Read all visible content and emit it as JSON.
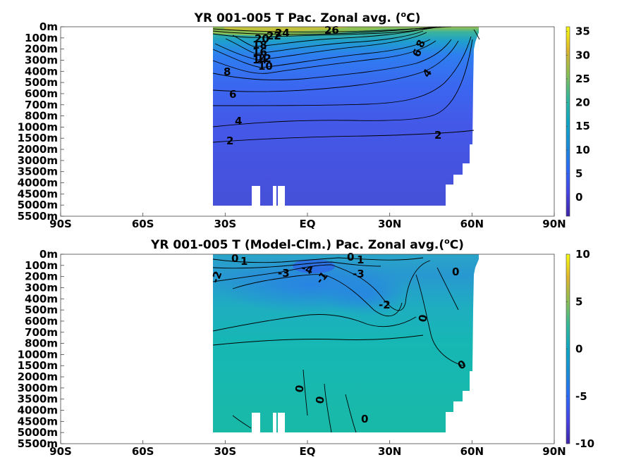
{
  "chart_data": [
    {
      "type": "heatmap",
      "title": "YR 001-005 T Pac. Zonal avg. (",
      "title_superscript": "o",
      "title_suffix": "C)",
      "x_tick_labels": [
        "90S",
        "60S",
        "30S",
        "EQ",
        "30N",
        "60N",
        "90N"
      ],
      "x_tick_values": [
        -90,
        -60,
        -30,
        0,
        30,
        60,
        90
      ],
      "y_tick_labels": [
        "0m",
        "100m",
        "200m",
        "300m",
        "400m",
        "500m",
        "600m",
        "700m",
        "800m",
        "1000m",
        "1500m",
        "2000m",
        "3000m",
        "3500m",
        "4000m",
        "4500m",
        "5000m",
        "5500m"
      ],
      "colorbar_ticks": [
        "35",
        "30",
        "25",
        "20",
        "15",
        "10",
        "5",
        "0"
      ],
      "colorbar_values": [
        35,
        30,
        25,
        20,
        15,
        10,
        5,
        0
      ],
      "colorbar_range": [
        -4,
        36
      ],
      "contour_labels": [
        "26",
        "24",
        "22",
        "20",
        "18",
        "16",
        "14",
        "12",
        "10",
        "8",
        "6",
        "4",
        "2",
        "8",
        "6",
        "4",
        "2"
      ],
      "grid": false
    },
    {
      "type": "heatmap",
      "title": "YR 001-005 T (Model-Clm.) Pac. Zonal avg.(",
      "title_superscript": "o",
      "title_suffix": "C)",
      "x_tick_labels": [
        "90S",
        "60S",
        "30S",
        "EQ",
        "30N",
        "60N",
        "90N"
      ],
      "x_tick_values": [
        -90,
        -60,
        -30,
        0,
        30,
        60,
        90
      ],
      "y_tick_labels": [
        "0m",
        "100m",
        "200m",
        "300m",
        "400m",
        "500m",
        "600m",
        "700m",
        "800m",
        "1000m",
        "1500m",
        "2000m",
        "3000m",
        "3500m",
        "4000m",
        "4500m",
        "5000m",
        "5500m"
      ],
      "colorbar_ticks": [
        "10",
        "5",
        "0",
        "-5",
        "-10"
      ],
      "colorbar_values": [
        10,
        5,
        0,
        -5,
        -10
      ],
      "colorbar_range": [
        -10,
        10
      ],
      "contour_labels": [
        "0",
        "1",
        "-2",
        "-3",
        "-4",
        "-1",
        "0",
        "1",
        "-3",
        "0",
        "-2",
        "0",
        "0",
        "0",
        "0",
        "0"
      ],
      "grid": false
    }
  ],
  "colors": {
    "background": "#ffffff",
    "axis": "#000000",
    "contour": "#000000"
  }
}
